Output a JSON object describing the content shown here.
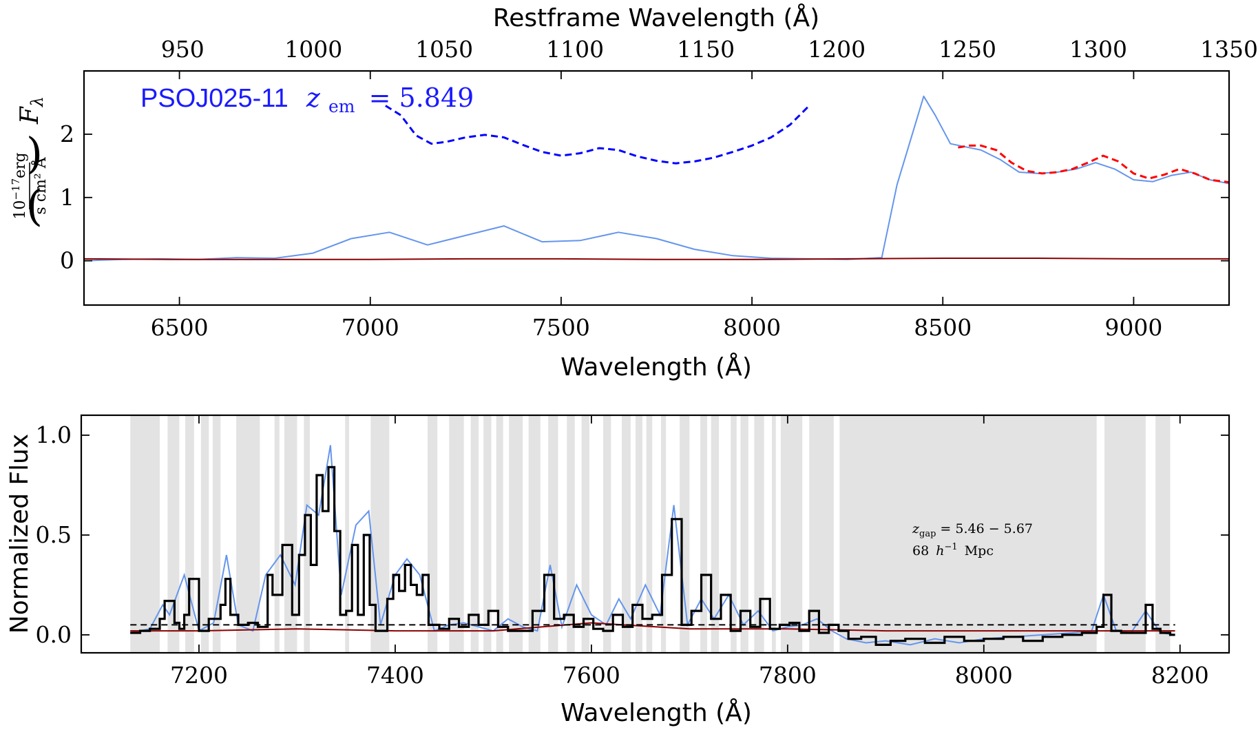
{
  "chart_data": [
    {
      "type": "line",
      "panel": "top",
      "xlabel": "Wavelength (Å)",
      "top_xlabel": "Restframe Wavelength (Å)",
      "ylabel_symbol": "F",
      "ylabel_sub": "λ",
      "ylabel_unit_num": "10",
      "ylabel_unit_num_exp": "−17",
      "ylabel_unit_num_rest": "erg",
      "ylabel_unit_den": "s cm² Å",
      "xlim": [
        6250,
        9250
      ],
      "ylim": [
        -0.7,
        3.0
      ],
      "top_xlim": [
        912.3,
        1350
      ],
      "x_ticks": [
        "6500",
        "7000",
        "7500",
        "8000",
        "8500",
        "9000"
      ],
      "y_ticks": [
        "0",
        "1",
        "2"
      ],
      "top_ticks": [
        "950",
        "1000",
        "1050",
        "1100",
        "1150",
        "1200",
        "1250",
        "1300",
        "1350"
      ],
      "annotation_name": "PSOJ025-11",
      "annotation_z_symbol": "z",
      "annotation_z_sub": "em",
      "annotation_z_value": "= 5.849",
      "series": [
        {
          "role": "flux",
          "color": "#6495ED",
          "x": [
            6250,
            6350,
            6450,
            6550,
            6650,
            6750,
            6850,
            6950,
            7050,
            7150,
            7250,
            7350,
            7450,
            7550,
            7650,
            7750,
            7850,
            7950,
            8050,
            8150,
            8250,
            8340,
            8380,
            8420,
            8450,
            8480,
            8520,
            8560,
            8600,
            8650,
            8700,
            8750,
            8800,
            8850,
            8900,
            8950,
            9000,
            9050,
            9100,
            9150,
            9200,
            9250
          ],
          "y": [
            0.0,
            0.02,
            0.03,
            0.02,
            0.05,
            0.04,
            0.12,
            0.35,
            0.45,
            0.25,
            0.4,
            0.55,
            0.3,
            0.32,
            0.45,
            0.35,
            0.18,
            0.08,
            0.04,
            0.03,
            0.02,
            0.05,
            1.2,
            2.0,
            2.6,
            2.3,
            1.85,
            1.8,
            1.75,
            1.6,
            1.4,
            1.38,
            1.4,
            1.45,
            1.55,
            1.45,
            1.28,
            1.25,
            1.35,
            1.4,
            1.28,
            1.22
          ]
        },
        {
          "role": "noise",
          "color": "#8B0000",
          "x": [
            6250,
            6500,
            6750,
            7000,
            7250,
            7500,
            7750,
            8000,
            8250,
            8500,
            8750,
            9000,
            9250
          ],
          "y": [
            0.03,
            0.02,
            0.02,
            0.02,
            0.03,
            0.03,
            0.02,
            0.02,
            0.03,
            0.04,
            0.04,
            0.03,
            0.03
          ]
        },
        {
          "role": "continuum",
          "color": "#0000FF",
          "style": "dashed",
          "x": [
            7040,
            7080,
            7120,
            7160,
            7200,
            7250,
            7300,
            7350,
            7400,
            7450,
            7500,
            7550,
            7600,
            7650,
            7700,
            7750,
            7800,
            7850,
            7900,
            7950,
            8000,
            8050,
            8100,
            8150
          ],
          "y": [
            2.45,
            2.3,
            1.98,
            1.85,
            1.88,
            1.95,
            1.99,
            1.95,
            1.83,
            1.72,
            1.66,
            1.7,
            1.78,
            1.75,
            1.65,
            1.58,
            1.54,
            1.57,
            1.63,
            1.72,
            1.82,
            1.95,
            2.15,
            2.45
          ]
        },
        {
          "role": "continuum",
          "color": "#FF0000",
          "style": "dashed",
          "x": [
            8540,
            8570,
            8600,
            8640,
            8680,
            8720,
            8760,
            8800,
            8840,
            8880,
            8920,
            8960,
            9000,
            9040,
            9080,
            9120,
            9160,
            9200,
            9250
          ],
          "y": [
            1.79,
            1.82,
            1.82,
            1.75,
            1.55,
            1.42,
            1.38,
            1.4,
            1.45,
            1.55,
            1.66,
            1.57,
            1.38,
            1.3,
            1.36,
            1.45,
            1.38,
            1.28,
            1.24
          ]
        }
      ]
    },
    {
      "type": "line",
      "panel": "bottom",
      "xlabel": "Wavelength (Å)",
      "ylabel": "Normalized Flux",
      "xlim": [
        7080,
        8250
      ],
      "ylim": [
        -0.09,
        1.1
      ],
      "x_ticks": [
        "7200",
        "7400",
        "7600",
        "7800",
        "8000",
        "8200"
      ],
      "y_ticks": [
        "0.0",
        "0.5",
        "1.0"
      ],
      "dashed_line_y": 0.05,
      "dashed_line_range": [
        7130,
        8195
      ],
      "annotation_z_symbol": "z",
      "annotation_z_sub": "gap",
      "annotation_z_value": "= 5.46 − 5.67",
      "annotation_length_value": "68",
      "annotation_length_h": "h",
      "annotation_length_exp": "−1",
      "annotation_length_unit": "Mpc",
      "gap_regions": [
        [
          7130,
          7160
        ],
        [
          7168,
          7180
        ],
        [
          7186,
          7195
        ],
        [
          7202,
          7210
        ],
        [
          7214,
          7222
        ],
        [
          7238,
          7262
        ],
        [
          7277,
          7282
        ],
        [
          7287,
          7300
        ],
        [
          7307,
          7313
        ],
        [
          7349,
          7353
        ],
        [
          7375,
          7394
        ],
        [
          7433,
          7443
        ],
        [
          7455,
          7470
        ],
        [
          7477,
          7485
        ],
        [
          7490,
          7498
        ],
        [
          7503,
          7510
        ],
        [
          7516,
          7530
        ],
        [
          7536,
          7548
        ],
        [
          7556,
          7566
        ],
        [
          7575,
          7583
        ],
        [
          7590,
          7598
        ],
        [
          7612,
          7620
        ],
        [
          7631,
          7640
        ],
        [
          7645,
          7652
        ],
        [
          7656,
          7662
        ],
        [
          7671,
          7676
        ],
        [
          7690,
          7700
        ],
        [
          7711,
          7718
        ],
        [
          7722,
          7730
        ],
        [
          7742,
          7748
        ],
        [
          7752,
          7760
        ],
        [
          7766,
          7776
        ],
        [
          7784,
          7788
        ],
        [
          7793,
          7815
        ],
        [
          7822,
          7847
        ],
        [
          7853,
          8115
        ],
        [
          8123,
          8165
        ],
        [
          8175,
          8190
        ]
      ],
      "series": [
        {
          "role": "flux",
          "color": "#6495ED",
          "x": [
            7130,
            7150,
            7163,
            7170,
            7185,
            7200,
            7215,
            7228,
            7240,
            7255,
            7268,
            7283,
            7298,
            7310,
            7322,
            7334,
            7345,
            7360,
            7373,
            7385,
            7400,
            7412,
            7425,
            7440,
            7455,
            7470,
            7485,
            7500,
            7515,
            7530,
            7545,
            7558,
            7570,
            7585,
            7600,
            7615,
            7628,
            7640,
            7655,
            7670,
            7684,
            7698,
            7712,
            7725,
            7740,
            7755,
            7770,
            7785,
            7800,
            7815,
            7830,
            7845,
            7860,
            7880,
            7900,
            7925,
            7950,
            7975,
            8000,
            8030,
            8060,
            8090,
            8110,
            8122,
            8135,
            8150,
            8165,
            8180,
            8195
          ],
          "y": [
            0.01,
            0.03,
            0.15,
            0.1,
            0.3,
            0.02,
            0.06,
            0.4,
            0.05,
            0.02,
            0.3,
            0.4,
            0.25,
            0.65,
            0.6,
            0.95,
            0.2,
            0.55,
            0.62,
            0.05,
            0.3,
            0.38,
            0.3,
            0.02,
            0.05,
            0.06,
            0.04,
            0.02,
            0.08,
            0.04,
            0.02,
            0.35,
            0.04,
            0.25,
            0.1,
            0.05,
            0.18,
            0.08,
            0.25,
            0.1,
            0.65,
            0.05,
            0.18,
            0.08,
            0.2,
            0.05,
            0.12,
            0.02,
            0.04,
            0.05,
            0.08,
            0.02,
            -0.02,
            -0.04,
            -0.03,
            -0.05,
            -0.02,
            -0.04,
            -0.02,
            -0.01,
            0.0,
            0.01,
            0.02,
            0.2,
            0.02,
            0.01,
            0.12,
            0.01,
            0.0
          ]
        },
        {
          "role": "noise",
          "color": "#8B0000",
          "x": [
            7130,
            7200,
            7300,
            7400,
            7500,
            7600,
            7700,
            7800,
            7900,
            8000,
            8100,
            8195
          ],
          "y": [
            0.02,
            0.02,
            0.03,
            0.02,
            0.02,
            0.06,
            0.03,
            0.03,
            0.02,
            0.02,
            0.02,
            0.02
          ]
        },
        {
          "role": "binned",
          "color": "#000000",
          "step": true,
          "x": [
            7130,
            7140,
            7150,
            7160,
            7165,
            7175,
            7180,
            7185,
            7190,
            7200,
            7210,
            7222,
            7227,
            7232,
            7240,
            7250,
            7260,
            7270,
            7275,
            7285,
            7295,
            7302,
            7308,
            7314,
            7320,
            7326,
            7332,
            7338,
            7344,
            7350,
            7356,
            7362,
            7368,
            7374,
            7380,
            7392,
            7398,
            7404,
            7410,
            7416,
            7422,
            7428,
            7434,
            7445,
            7455,
            7465,
            7475,
            7485,
            7495,
            7505,
            7515,
            7525,
            7540,
            7552,
            7562,
            7572,
            7582,
            7592,
            7602,
            7612,
            7622,
            7632,
            7642,
            7652,
            7662,
            7672,
            7682,
            7692,
            7702,
            7712,
            7722,
            7732,
            7742,
            7752,
            7762,
            7772,
            7782,
            7792,
            7802,
            7812,
            7822,
            7832,
            7842,
            7852,
            7862,
            7875,
            7890,
            7905,
            7920,
            7940,
            7960,
            7980,
            8000,
            8020,
            8040,
            8060,
            8080,
            8100,
            8115,
            8122,
            8130,
            8140,
            8150,
            8165,
            8172,
            8180,
            8190
          ],
          "y": [
            0.01,
            0.02,
            0.03,
            0.08,
            0.17,
            0.06,
            0.03,
            0.1,
            0.28,
            0.02,
            0.08,
            0.15,
            0.28,
            0.1,
            0.05,
            0.06,
            0.04,
            0.3,
            0.2,
            0.45,
            0.1,
            0.4,
            0.6,
            0.35,
            0.8,
            0.62,
            0.84,
            0.52,
            0.1,
            0.12,
            0.45,
            0.1,
            0.5,
            0.15,
            0.02,
            0.18,
            0.3,
            0.22,
            0.35,
            0.25,
            0.2,
            0.3,
            0.05,
            0.03,
            0.08,
            0.04,
            0.1,
            0.05,
            0.12,
            0.04,
            0.02,
            0.02,
            0.12,
            0.3,
            0.08,
            0.1,
            0.04,
            0.08,
            0.03,
            0.02,
            0.1,
            0.04,
            0.15,
            0.08,
            0.1,
            0.3,
            0.58,
            0.05,
            0.12,
            0.3,
            0.08,
            0.2,
            0.02,
            0.12,
            0.04,
            0.18,
            0.03,
            0.05,
            0.06,
            0.02,
            0.12,
            0.01,
            0.05,
            0.02,
            -0.02,
            -0.01,
            -0.05,
            -0.03,
            -0.02,
            -0.04,
            -0.01,
            -0.03,
            -0.02,
            -0.01,
            -0.03,
            -0.01,
            0.0,
            0.01,
            0.04,
            0.2,
            0.02,
            0.01,
            0.01,
            0.15,
            0.03,
            0.01,
            0.0
          ]
        }
      ]
    }
  ]
}
